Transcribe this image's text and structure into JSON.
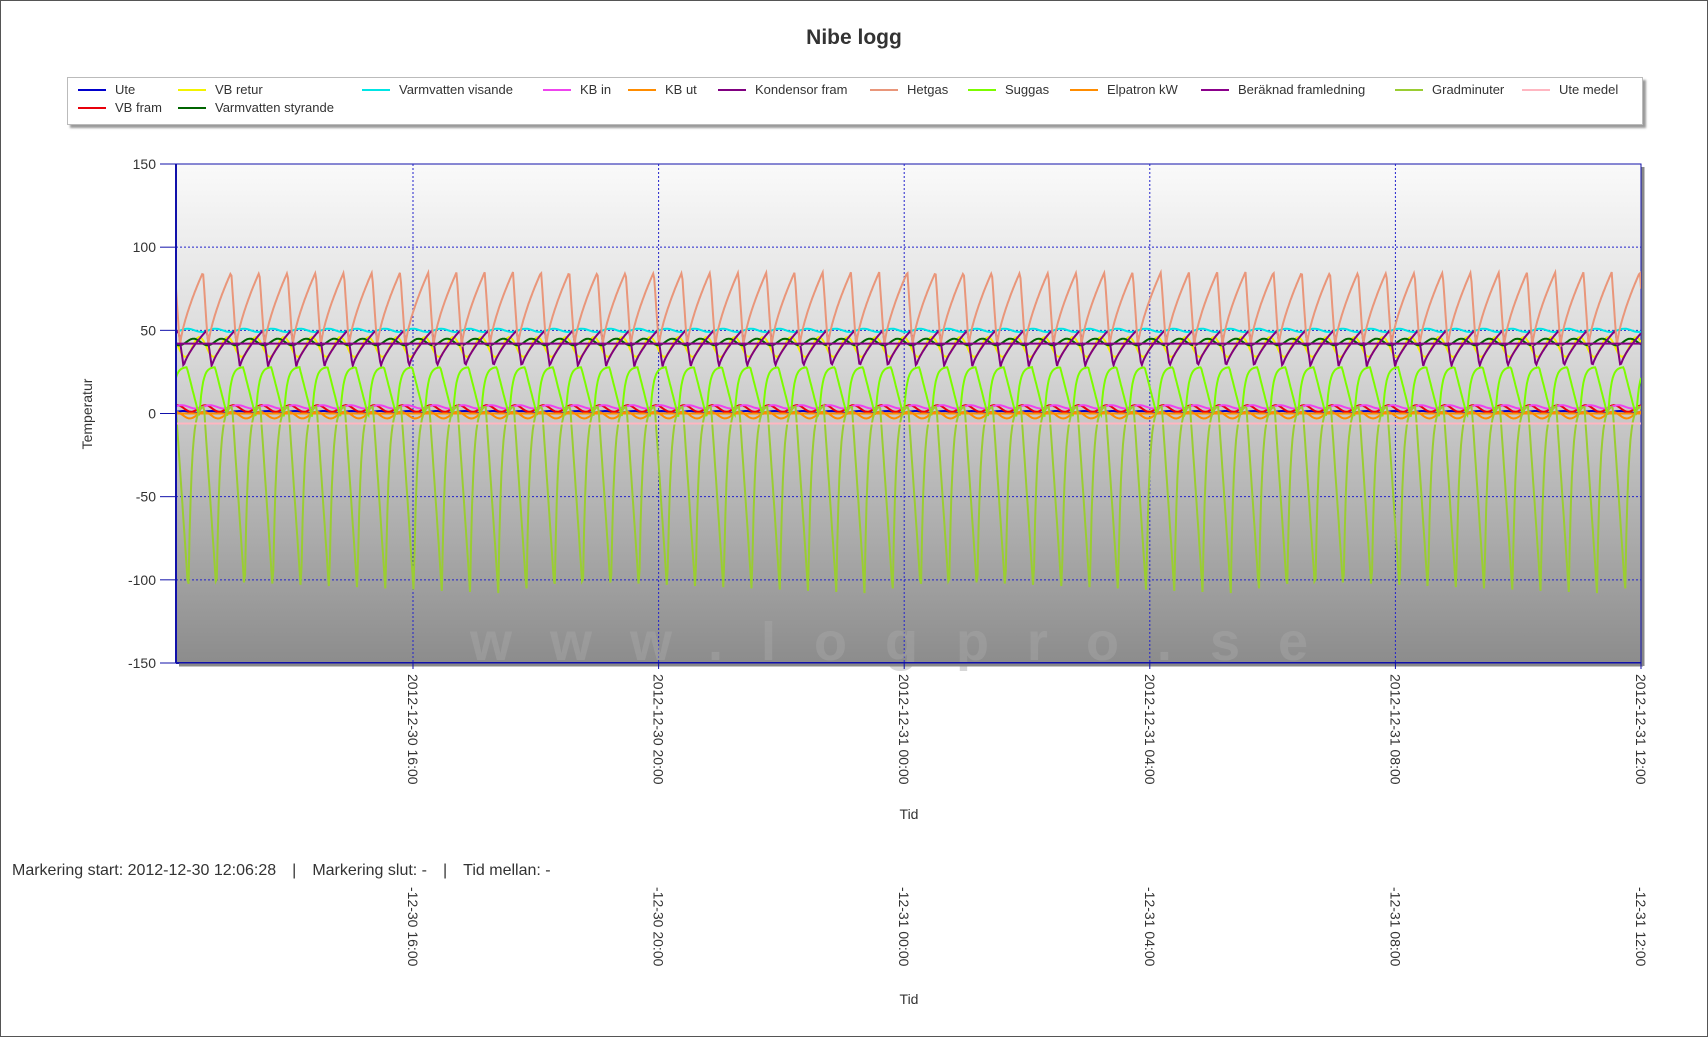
{
  "chart_data": {
    "type": "line",
    "title": "Nibe logg",
    "xlabel": "Tid",
    "ylabel": "Temperatur",
    "ylim": [
      -150,
      150
    ],
    "yticks": [
      "150",
      "100",
      "50",
      "0",
      "-50",
      "-100",
      "-150"
    ],
    "xticks": [
      "2012-12-30 16:00",
      "2012-12-30 20:00",
      "2012-12-31 00:00",
      "2012-12-31 04:00",
      "2012-12-31 08:00",
      "2012-12-31 12:00"
    ],
    "x_range": [
      "2012-12-30 12:06",
      "2012-12-31 12:00"
    ],
    "grid": true,
    "legend_position": "top",
    "watermark": "www.logpro.se",
    "series": [
      {
        "name": "Ute",
        "color": "#0000cc",
        "approx": {
          "level": 1,
          "amplitude": 0.5
        }
      },
      {
        "name": "VB fram",
        "color": "#e8000b",
        "approx": {
          "level": 3,
          "amplitude": 2
        }
      },
      {
        "name": "VB retur",
        "color": "#f3f300",
        "approx": {
          "level": 40,
          "amplitude": 6
        }
      },
      {
        "name": "Varmvatten styrande",
        "color": "#006400",
        "approx": {
          "level": 43,
          "amplitude": 2
        }
      },
      {
        "name": "Varmvatten visande",
        "color": "#00e5e5",
        "approx": {
          "level": 50,
          "amplitude": 1
        }
      },
      {
        "name": "KB in",
        "color": "#ee44ee",
        "approx": {
          "level": 4,
          "amplitude": 1
        }
      },
      {
        "name": "KB ut",
        "color": "#ff8c00",
        "approx": {
          "level": -1,
          "amplitude": 2
        }
      },
      {
        "name": "Kondensor fram",
        "color": "#800080",
        "approx": {
          "min": 28,
          "max": 50,
          "cycles": 52
        }
      },
      {
        "name": "Hetgas",
        "color": "#e9967a",
        "approx": {
          "min": 40,
          "max": 85,
          "cycles": 52
        }
      },
      {
        "name": "Suggas",
        "color": "#7cfc00",
        "approx": {
          "min": -2,
          "max": 28,
          "cycles": 52
        }
      },
      {
        "name": "Elpatron kW",
        "color": "#ff8c00",
        "approx": {
          "level": 0
        }
      },
      {
        "name": "Beräknad framledning",
        "color": "#8b008b",
        "approx": {
          "level": 42
        }
      },
      {
        "name": "Gradminuter",
        "color": "#9acd32",
        "approx": {
          "min": -108,
          "max": 5,
          "cycles": 52
        }
      },
      {
        "name": "Ute medel",
        "color": "#ffb6c1",
        "approx": {
          "level": -6
        }
      }
    ]
  },
  "status": {
    "start": "Markering start: 2012-12-30 12:06:28",
    "separator": "|",
    "end": "Markering slut: -",
    "between": "Tid mellan: -"
  }
}
